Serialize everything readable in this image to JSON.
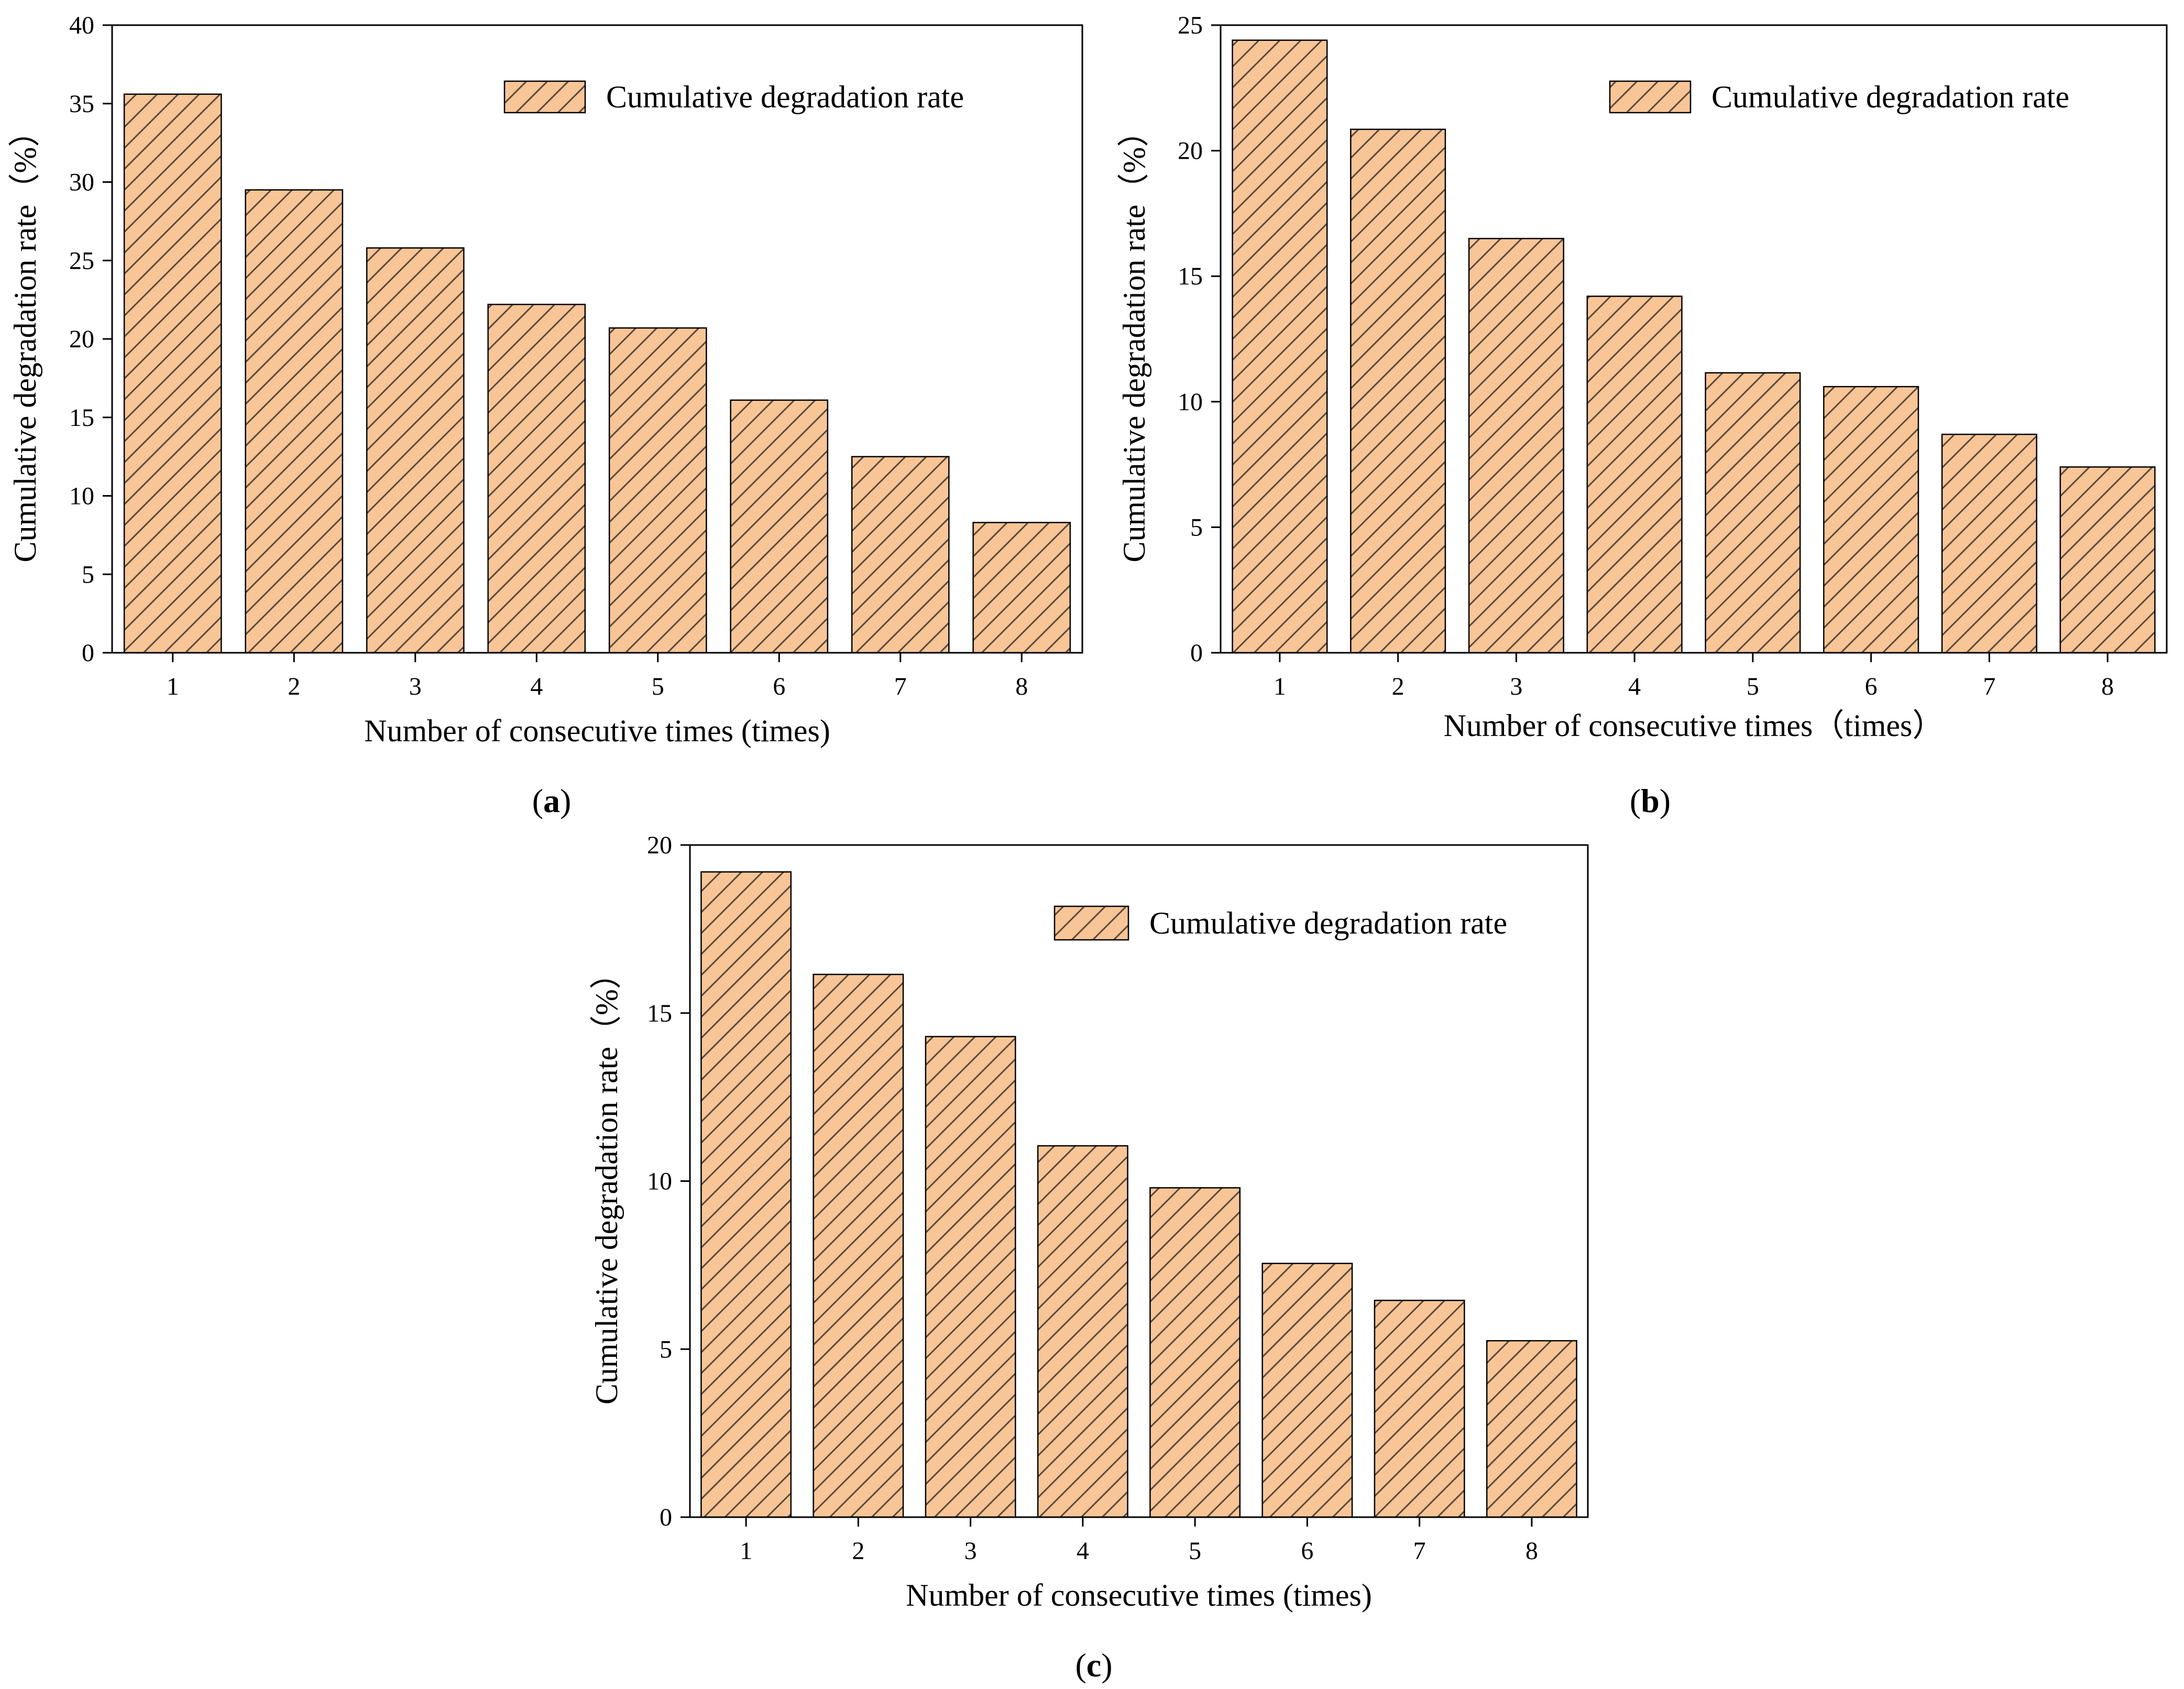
{
  "colors": {
    "bar_fill": "#F8C597",
    "hatch": "#5a4a3a",
    "axis": "#000000",
    "text": "#000000"
  },
  "chart_data": [
    {
      "panel": "(a)",
      "panel_letter": "a",
      "type": "bar",
      "categories": [
        "1",
        "2",
        "3",
        "4",
        "5",
        "6",
        "7",
        "8"
      ],
      "series": [
        {
          "name": "Cumulative degradation rate",
          "values": [
            35.6,
            29.5,
            25.8,
            22.2,
            20.7,
            16.1,
            12.5,
            8.3
          ]
        }
      ],
      "xlabel": "Number of consecutive times (times)",
      "ylabel": "Cumulative degradation rate（%）",
      "ylim": [
        0,
        40
      ],
      "yticks": [
        0,
        5,
        10,
        15,
        20,
        25,
        30,
        35,
        40
      ],
      "legend_position": "top-right"
    },
    {
      "panel": "(b)",
      "panel_letter": "b",
      "type": "bar",
      "categories": [
        "1",
        "2",
        "3",
        "4",
        "5",
        "6",
        "7",
        "8"
      ],
      "series": [
        {
          "name": "Cumulative degradation rate",
          "values": [
            24.4,
            20.85,
            16.5,
            14.2,
            11.15,
            10.6,
            8.7,
            7.4
          ]
        }
      ],
      "xlabel": "Number of consecutive times（times）",
      "ylabel": "Cumulative degradation rate（%）",
      "ylim": [
        0,
        25
      ],
      "yticks": [
        0,
        5,
        10,
        15,
        20,
        25
      ],
      "legend_position": "top-right"
    },
    {
      "panel": "(c)",
      "panel_letter": "c",
      "type": "bar",
      "categories": [
        "1",
        "2",
        "3",
        "4",
        "5",
        "6",
        "7",
        "8"
      ],
      "series": [
        {
          "name": "Cumulative degradation rate",
          "values": [
            19.2,
            16.15,
            14.3,
            11.05,
            9.8,
            7.55,
            6.45,
            5.25
          ]
        }
      ],
      "xlabel": "Number of consecutive times (times)",
      "ylabel": "Cumulative degradation rate（%）",
      "ylim": [
        0,
        20
      ],
      "yticks": [
        0,
        5,
        10,
        15,
        20
      ],
      "legend_position": "top-right"
    }
  ]
}
